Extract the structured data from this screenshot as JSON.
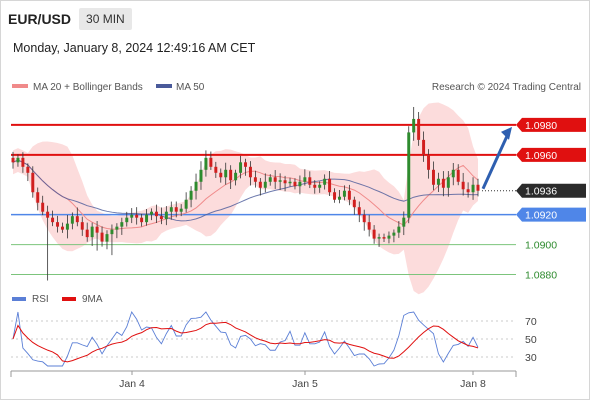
{
  "header": {
    "symbol": "EUR/USD",
    "timeframe": "30 MIN"
  },
  "datetime": "Monday, January 8, 2024 12:49:16 AM CET",
  "legend": {
    "ma20": "MA 20 + Bollinger Bands",
    "ma50": "MA 50",
    "credit": "Research © 2024 Trading Central",
    "rsi": "RSI",
    "rsi_ma": "9MA"
  },
  "colors": {
    "up": "#2e8b2e",
    "down": "#d11f1f",
    "ma20": "#f08a8a",
    "band": "#fbd0d0",
    "ma50": "#4a5a9a",
    "resistance": "#e01010",
    "support_blue": "#4f86e8",
    "support_green": "#7cc47c",
    "rsi": "#5b7fd6",
    "rsi_ma": "#e01010",
    "arrow": "#2e5fb0"
  },
  "chart_data": [
    {
      "type": "candlestick",
      "title": "",
      "yaxis_side": "right",
      "ylim": [
        1.0875,
        1.1
      ],
      "x_ticks": [
        "Jan 4",
        "Jan 5",
        "Jan 8"
      ],
      "levels": [
        {
          "value": 1.098,
          "label": "1.0980",
          "kind": "resistance"
        },
        {
          "value": 1.096,
          "label": "1.0960",
          "kind": "resistance"
        },
        {
          "value": 1.0936,
          "label": "1.0936",
          "kind": "current"
        },
        {
          "value": 1.092,
          "label": "1.0920",
          "kind": "support_strong"
        },
        {
          "value": 1.09,
          "label": "1.0900",
          "kind": "support"
        },
        {
          "value": 1.088,
          "label": "1.0880",
          "kind": "support"
        }
      ],
      "close_series": [
        1.0955,
        1.0958,
        1.0952,
        1.0948,
        1.0935,
        1.0928,
        1.0922,
        1.0918,
        1.0915,
        1.0912,
        1.091,
        1.0914,
        1.0919,
        1.0915,
        1.091,
        1.0905,
        1.0912,
        1.0908,
        1.0902,
        1.0907,
        1.091,
        1.0912,
        1.0915,
        1.0918,
        1.092,
        1.0918,
        1.0915,
        1.092,
        1.0922,
        1.0919,
        1.0917,
        1.0922,
        1.0925,
        1.0922,
        1.0924,
        1.093,
        1.0936,
        1.0942,
        1.095,
        1.0958,
        1.0952,
        1.0948,
        1.0945,
        1.095,
        1.0943,
        1.0948,
        1.0955,
        1.0952,
        1.0945,
        1.0942,
        1.0938,
        1.0942,
        1.0945,
        1.0942,
        1.0943,
        1.0941,
        1.0942,
        1.0939,
        1.0942,
        1.0945,
        1.094,
        1.0938,
        1.094,
        1.0944,
        1.0935,
        1.093,
        1.0932,
        1.0936,
        1.093,
        1.0925,
        1.092,
        1.0915,
        1.091,
        1.0904,
        1.0905,
        1.0904,
        1.0906,
        1.0908,
        1.0912,
        1.0918,
        1.0975,
        1.0984,
        1.097,
        1.096,
        1.095,
        1.094,
        1.0944,
        1.0938,
        1.0945,
        1.095,
        1.0942,
        1.0937,
        1.0935,
        1.094,
        1.0936
      ],
      "annotations": [
        "arrow toward 1.0980"
      ]
    },
    {
      "type": "line",
      "title": "",
      "series_names": [
        "RSI",
        "9MA"
      ],
      "y_ticks": [
        70,
        50,
        30
      ],
      "ylim": [
        20,
        80
      ]
    }
  ]
}
